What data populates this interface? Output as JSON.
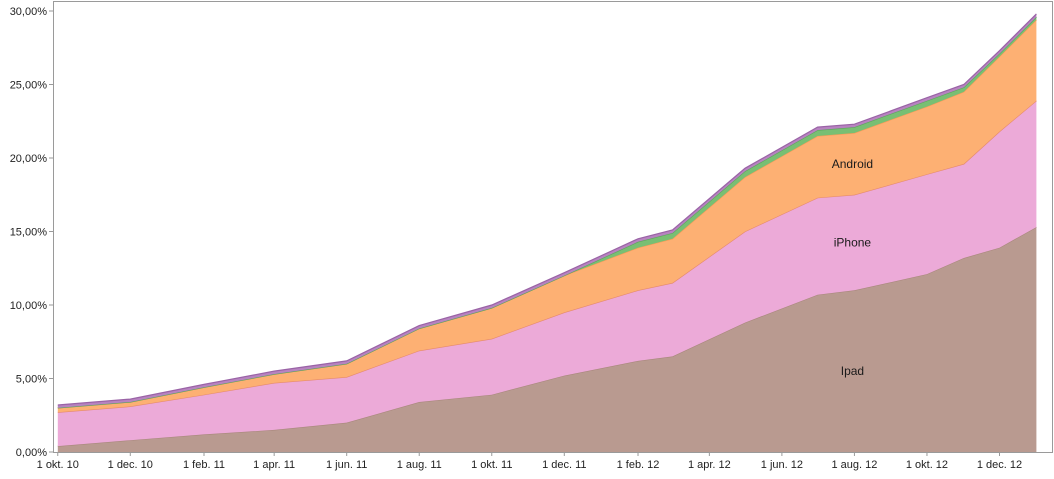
{
  "chart_data": {
    "type": "area",
    "stacked": true,
    "x": [
      "2010-10-01",
      "2010-12-01",
      "2011-02-01",
      "2011-04-01",
      "2011-06-01",
      "2011-08-01",
      "2011-10-01",
      "2011-12-01",
      "2012-02-01",
      "2012-03-01",
      "2012-05-01",
      "2012-07-01",
      "2012-08-01",
      "2012-10-01",
      "2012-11-01",
      "2012-12-01",
      "2013-01-01"
    ],
    "x_ticks": [
      {
        "date": "2010-10-01",
        "label": "1 okt. 10"
      },
      {
        "date": "2010-12-01",
        "label": "1 dec. 10"
      },
      {
        "date": "2011-02-01",
        "label": "1 feb. 11"
      },
      {
        "date": "2011-04-01",
        "label": "1 apr. 11"
      },
      {
        "date": "2011-06-01",
        "label": "1 jun. 11"
      },
      {
        "date": "2011-08-01",
        "label": "1 aug. 11"
      },
      {
        "date": "2011-10-01",
        "label": "1 okt. 11"
      },
      {
        "date": "2011-12-01",
        "label": "1 dec. 11"
      },
      {
        "date": "2012-02-01",
        "label": "1 feb. 12"
      },
      {
        "date": "2012-04-01",
        "label": "1 apr. 12"
      },
      {
        "date": "2012-06-01",
        "label": "1 jun. 12"
      },
      {
        "date": "2012-08-01",
        "label": "1 aug. 12"
      },
      {
        "date": "2012-10-01",
        "label": "1 okt. 12"
      },
      {
        "date": "2012-12-01",
        "label": "1 dec. 12"
      }
    ],
    "x_range": [
      "2010-09-27",
      "2013-01-15"
    ],
    "y_ticks": [
      "0,00%",
      "5,00%",
      "10,00%",
      "15,00%",
      "20,00%",
      "25,00%",
      "30,00%"
    ],
    "ylim": [
      0,
      30
    ],
    "series": [
      {
        "name": "Ipad",
        "color": "#b99a90",
        "line": "#a8887c",
        "values": [
          0.4,
          0.8,
          1.2,
          1.5,
          2.0,
          3.4,
          3.9,
          5.2,
          6.2,
          6.5,
          8.8,
          10.7,
          11.0,
          12.1,
          13.2,
          13.9,
          15.3
        ]
      },
      {
        "name": "iPhone",
        "color": "#ecaad8",
        "line": "#e58a6b",
        "values": [
          2.3,
          2.3,
          2.7,
          3.2,
          3.1,
          3.5,
          3.8,
          4.3,
          4.8,
          5.0,
          6.2,
          6.6,
          6.5,
          6.8,
          6.4,
          7.9,
          8.6
        ]
      },
      {
        "name": "Android",
        "color": "#fdb073",
        "line": "#fb9a58",
        "values": [
          0.3,
          0.3,
          0.5,
          0.6,
          0.9,
          1.5,
          2.1,
          2.5,
          2.9,
          3.0,
          3.7,
          4.2,
          4.2,
          4.6,
          4.9,
          5.1,
          5.5
        ]
      },
      {
        "color": "#78bf73",
        "line": "#5aa65a",
        "values": [
          0.0,
          0.0,
          0.0,
          0.0,
          0.0,
          0.0,
          0.0,
          0.0,
          0.4,
          0.4,
          0.4,
          0.4,
          0.4,
          0.4,
          0.3,
          0.2,
          0.2
        ]
      },
      {
        "color": "#b783c0",
        "line": "#9a63a6",
        "values": [
          0.2,
          0.2,
          0.2,
          0.2,
          0.2,
          0.2,
          0.2,
          0.2,
          0.2,
          0.2,
          0.2,
          0.2,
          0.2,
          0.2,
          0.2,
          0.2,
          0.2
        ]
      }
    ],
    "grid": false,
    "legend": "none"
  }
}
